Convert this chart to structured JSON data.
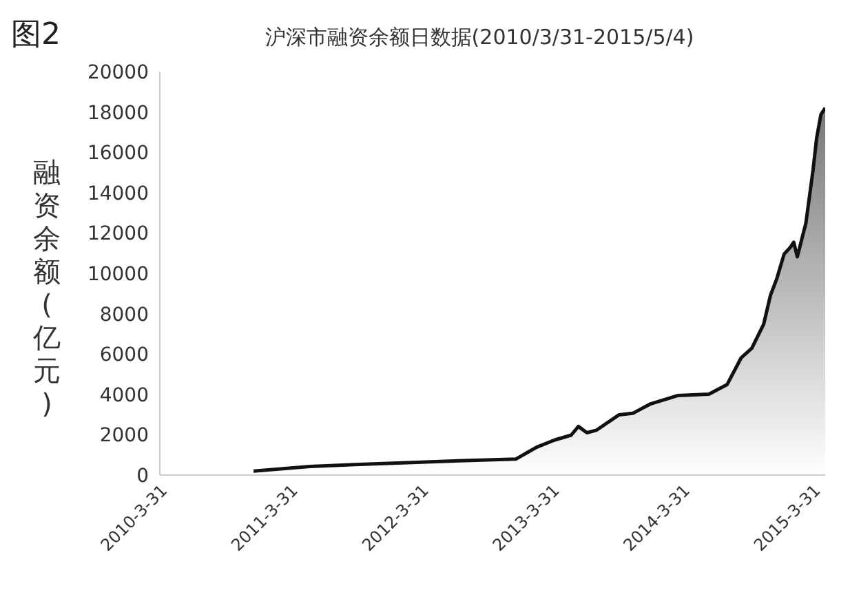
{
  "chart_data": {
    "type": "area",
    "title": "沪深市融资余额日数据(2010/3/31-2015/5/4)",
    "ylabel": "融资余额(亿元)",
    "annotations": [
      "图2"
    ],
    "x": [
      "2010-12-18",
      "2011-05-25",
      "2011-11-06",
      "2012-07-15",
      "2012-12-20",
      "2013-02-16",
      "2013-04-08",
      "2013-05-24",
      "2013-06-13",
      "2013-07-07",
      "2013-08-02",
      "2013-10-05",
      "2013-11-12",
      "2014-01-01",
      "2014-03-17",
      "2014-06-13",
      "2014-08-03",
      "2014-09-11",
      "2014-10-11",
      "2014-11-13",
      "2014-12-02",
      "2014-12-20",
      "2015-01-09",
      "2015-01-27",
      "2015-02-05",
      "2015-02-15",
      "2015-03-11",
      "2015-03-31",
      "2015-04-10",
      "2015-04-22",
      "2015-05-04"
    ],
    "series": [
      {
        "color": "#111111",
        "values": [
          200,
          430,
          550,
          710,
          790,
          1380,
          1740,
          1980,
          2410,
          2100,
          2220,
          2990,
          3060,
          3530,
          3940,
          4010,
          4490,
          5810,
          6290,
          7480,
          8910,
          9750,
          10950,
          11300,
          11540,
          10820,
          12490,
          15120,
          16700,
          17870,
          18200
        ]
      }
    ],
    "xlim": [
      "2010-03-31",
      "2015-05-04"
    ],
    "xticks": [
      {
        "value": "2010-03-31",
        "label": "2010-3-31"
      },
      {
        "value": "2011-03-31",
        "label": "2011-3-31"
      },
      {
        "value": "2012-03-31",
        "label": "2012-3-31"
      },
      {
        "value": "2013-03-31",
        "label": "2013-3-31"
      },
      {
        "value": "2014-03-31",
        "label": "2014-3-31"
      },
      {
        "value": "2015-03-31",
        "label": "2015-3-31"
      }
    ],
    "ylim": [
      0,
      20000
    ],
    "yticks": [
      0,
      2000,
      4000,
      6000,
      8000,
      10000,
      12000,
      14000,
      16000,
      18000,
      20000
    ],
    "grid": false,
    "legend": false
  }
}
